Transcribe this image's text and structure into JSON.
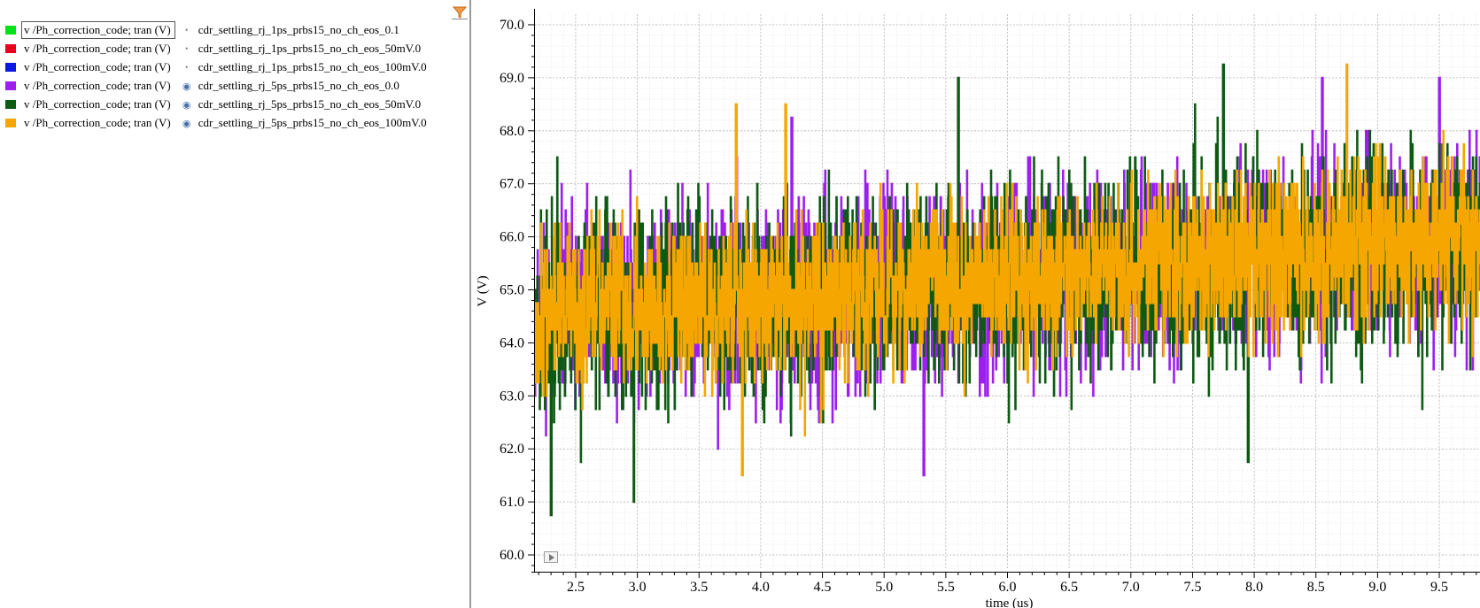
{
  "legend": {
    "items": [
      {
        "color": "#00e21a",
        "signal": "v /Ph_correction_code; tran (V)",
        "visibility": "dot",
        "dataset": "cdr_settling_rj_1ps_prbs15_no_ch_eos_0.1",
        "selected": true
      },
      {
        "color": "#e8001c",
        "signal": "v /Ph_correction_code; tran (V)",
        "visibility": "dot",
        "dataset": "cdr_settling_rj_1ps_prbs15_no_ch_eos_50mV.0",
        "selected": false
      },
      {
        "color": "#0a18e0",
        "signal": "v /Ph_correction_code; tran (V)",
        "visibility": "dot",
        "dataset": "cdr_settling_rj_1ps_prbs15_no_ch_eos_100mV.0",
        "selected": false
      },
      {
        "color": "#9d1ff0",
        "signal": "v /Ph_correction_code; tran (V)",
        "visibility": "eye",
        "dataset": "cdr_settling_rj_5ps_prbs15_no_ch_eos_0.0",
        "selected": false
      },
      {
        "color": "#0d5a12",
        "signal": "v /Ph_correction_code; tran (V)",
        "visibility": "eye",
        "dataset": "cdr_settling_rj_5ps_prbs15_no_ch_eos_50mV.0",
        "selected": false
      },
      {
        "color": "#f5a600",
        "signal": "v /Ph_correction_code; tran (V)",
        "visibility": "eye",
        "dataset": "cdr_settling_rj_5ps_prbs15_no_ch_eos_100mV.0",
        "selected": false
      }
    ],
    "filter_icon": "filter-icon"
  },
  "chart_data": {
    "type": "line",
    "xlabel": "time (us)",
    "ylabel": "V (V)",
    "xlim": [
      2.17,
      9.83
    ],
    "ylim": [
      59.75,
      70.2
    ],
    "x_ticks": [
      "2.5",
      "3.0",
      "3.5",
      "4.0",
      "4.5",
      "5.0",
      "5.5",
      "6.0",
      "6.5",
      "7.0",
      "7.5",
      "8.0",
      "8.5",
      "9.0",
      "9.5"
    ],
    "y_ticks": [
      "60.0",
      "61.0",
      "62.0",
      "63.0",
      "64.0",
      "65.0",
      "66.0",
      "67.0",
      "68.0",
      "69.0",
      "70.0"
    ],
    "grid": true,
    "series": [
      {
        "name": "cdr_settling_rj_5ps_prbs15_no_ch_eos_0.0",
        "color": "#9d1ff0",
        "seed": 11,
        "center": [
          [
            2.17,
            64.6
          ],
          [
            4.0,
            64.8
          ],
          [
            6.0,
            65.2
          ],
          [
            8.0,
            65.6
          ],
          [
            9.83,
            65.9
          ]
        ],
        "amp": 2.6,
        "peaks": [
          [
            4.25,
            68.2
          ],
          [
            5.32,
            61.5
          ],
          [
            8.55,
            68.9
          ],
          [
            9.5,
            68.9
          ]
        ]
      },
      {
        "name": "cdr_settling_rj_5ps_prbs15_no_ch_eos_50mV.0",
        "color": "#0d5a12",
        "seed": 23,
        "center": [
          [
            2.17,
            64.5
          ],
          [
            4.0,
            64.8
          ],
          [
            6.0,
            65.2
          ],
          [
            8.0,
            65.6
          ],
          [
            9.83,
            65.9
          ]
        ],
        "amp": 2.7,
        "peaks": [
          [
            2.3,
            60.7
          ],
          [
            2.97,
            61.1
          ],
          [
            5.6,
            69.1
          ],
          [
            7.75,
            69.3
          ],
          [
            7.95,
            61.8
          ]
        ]
      },
      {
        "name": "cdr_settling_rj_5ps_prbs15_no_ch_eos_100mV.0",
        "color": "#f5a600",
        "seed": 37,
        "center": [
          [
            2.17,
            64.6
          ],
          [
            4.0,
            64.8
          ],
          [
            6.0,
            65.2
          ],
          [
            8.0,
            65.7
          ],
          [
            9.83,
            66.0
          ]
        ],
        "amp": 2.2,
        "peaks": [
          [
            3.8,
            68.6
          ],
          [
            4.2,
            68.5
          ],
          [
            3.85,
            61.4
          ],
          [
            8.75,
            69.2
          ]
        ]
      }
    ]
  }
}
